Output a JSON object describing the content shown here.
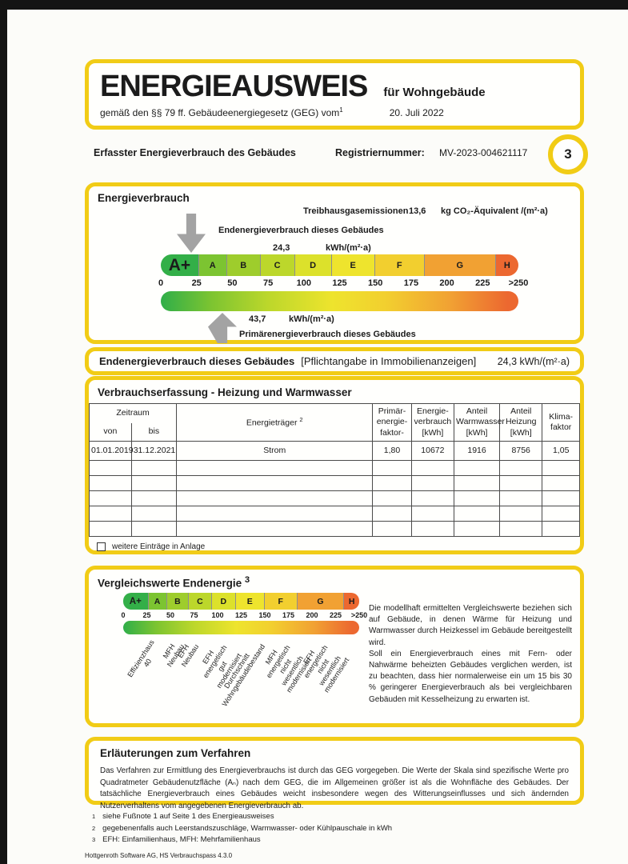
{
  "header": {
    "title": "ENERGIEAUSWEIS",
    "subtitle": "für Wohngebäude",
    "law_text": "gemäß den §§ 79 ff. Gebäudeenergiegesetz (GEG) vom",
    "law_sup": "1",
    "law_date": "20. Juli 2022"
  },
  "meta": {
    "section_label": "Erfasster Energieverbrauch des Gebäudes",
    "registry_label": "Registriernummer:",
    "registry_value": "MV-2023-004621117",
    "page_number": "3"
  },
  "energy": {
    "title": "Energieverbrauch",
    "ghg_label": "Treibhausgasemissionen",
    "ghg_value": "13,6",
    "ghg_unit": "kg CO₂-Äquivalent /(m²·a)",
    "end_label": "Endenergieverbrauch dieses Gebäudes",
    "end_value": "24,3",
    "end_unit": "kWh/(m²·a)",
    "primary_value": "43,7",
    "primary_unit": "kWh/(m²·a)",
    "primary_label": "Primärenergieverbrauch dieses Gebäudes",
    "scale": {
      "segments": [
        {
          "label": "A+",
          "color": "#33AF48",
          "width": 10.7
        },
        {
          "label": "A",
          "color": "#7CC431",
          "width": 7.8
        },
        {
          "label": "B",
          "color": "#9ECD2C",
          "width": 9.4
        },
        {
          "label": "C",
          "color": "#BCD72B",
          "width": 9.6
        },
        {
          "label": "D",
          "color": "#DCE12B",
          "width": 10.3
        },
        {
          "label": "E",
          "color": "#EEE42D",
          "width": 12.1
        },
        {
          "label": "F",
          "color": "#F2CF2F",
          "width": 13.9
        },
        {
          "label": "G",
          "color": "#F1A133",
          "width": 19.9
        },
        {
          "label": "H",
          "color": "#EC6830",
          "width": 6.3
        }
      ],
      "ticks": [
        "0",
        "25",
        "50",
        "75",
        "100",
        "125",
        "150",
        "175",
        "200",
        "225",
        ">250"
      ]
    }
  },
  "endenergy_box": {
    "label": "Endenergieverbrauch dieses Gebäudes",
    "note": "[Pflichtangabe in Immobilienanzeigen]",
    "value": "24,3 kWh/(m²·a)"
  },
  "consumption": {
    "title": "Verbrauchserfassung - Heizung und Warmwasser",
    "headers": {
      "zeitraum": "Zeitraum",
      "von": "von",
      "bis": "bis",
      "carrier": "Energieträger",
      "carrier_sup": "2",
      "pef": "Primär-\nenergie-\nfaktor-",
      "consumption": "Energie-\nverbrauch\n[kWh]",
      "hot_water": "Anteil\nWarmwasser\n[kWh]",
      "heating": "Anteil\nHeizung\n[kWh]",
      "climate": "Klima-\nfaktor"
    },
    "rows": [
      [
        "01.01.2019",
        "31.12.2021",
        "Strom",
        "1,80",
        "10672",
        "1916",
        "8756",
        "1,05"
      ],
      [
        "",
        "",
        "",
        "",
        "",
        "",
        "",
        ""
      ],
      [
        "",
        "",
        "",
        "",
        "",
        "",
        "",
        ""
      ],
      [
        "",
        "",
        "",
        "",
        "",
        "",
        "",
        ""
      ],
      [
        "",
        "",
        "",
        "",
        "",
        "",
        "",
        ""
      ],
      [
        "",
        "",
        "",
        "",
        "",
        "",
        "",
        ""
      ]
    ],
    "checkbox_label": "weitere Einträge in Anlage"
  },
  "comparison": {
    "title": "Vergleichswerte Endenergie",
    "title_sup": "3",
    "scale": {
      "segments": [
        {
          "label": "A+",
          "color": "#33AF48",
          "width": 10.7
        },
        {
          "label": "A",
          "color": "#7CC431",
          "width": 7.8
        },
        {
          "label": "B",
          "color": "#9ECD2C",
          "width": 9.4
        },
        {
          "label": "C",
          "color": "#BCD72B",
          "width": 9.6
        },
        {
          "label": "D",
          "color": "#DCE12B",
          "width": 10.3
        },
        {
          "label": "E",
          "color": "#EEE42D",
          "width": 12.1
        },
        {
          "label": "F",
          "color": "#F2CF2F",
          "width": 13.9
        },
        {
          "label": "G",
          "color": "#F1A133",
          "width": 19.9
        },
        {
          "label": "H",
          "color": "#EC6830",
          "width": 6.3
        }
      ],
      "ticks": [
        "0",
        "25",
        "50",
        "75",
        "100",
        "125",
        "150",
        "175",
        "200",
        "225",
        ">250"
      ]
    },
    "markers": [
      {
        "text": "Effizienzhaus 40",
        "pos": 11
      },
      {
        "text": "MFH Neubau",
        "pos": 21
      },
      {
        "text": "EFH Neubau",
        "pos": 27
      },
      {
        "text": "EFH energetisch\ngut modernisiert",
        "pos": 39
      },
      {
        "text": "Durchschnitt\nWohngebäudebestand",
        "pos": 55
      },
      {
        "text": "MFH energetisch nicht\nwesentlich modernisiert",
        "pos": 66
      },
      {
        "text": "EFH energetisch nicht\nwesentlich modernisiert",
        "pos": 82
      }
    ],
    "paragraphs": [
      "Die modellhaft ermittelten Vergleichswerte beziehen sich auf Gebäude, in denen Wärme für Heizung und Warmwasser durch Heizkessel im Gebäude bereitgestellt wird.",
      "Soll ein Energieverbrauch eines mit Fern- oder Nahwärme beheizten Gebäudes verglichen werden, ist zu beachten, dass hier normalerweise ein um 15 bis 30 % geringerer Energieverbrauch als bei vergleichbaren Gebäuden mit Kesselheizung zu erwarten ist."
    ]
  },
  "explanations": {
    "title": "Erläuterungen zum Verfahren",
    "text": "Das Verfahren zur Ermittlung des Energieverbrauchs ist durch das GEG vorgegeben. Die Werte der Skala sind spezifische Werte pro Quadratmeter Gebäudenutzfläche (Aₙ) nach dem GEG, die im Allgemeinen größer ist als die Wohnfläche des Gebäudes. Der tatsächliche Energieverbrauch eines Gebäudes weicht insbesondere wegen des Witterungseinflusses und sich ändernden Nutzerverhaltens vom angegebenen Energieverbrauch ab."
  },
  "footnotes": {
    "items": [
      {
        "marker": "1",
        "text": "siehe Fußnote 1 auf Seite 1 des Energieausweises"
      },
      {
        "marker": "2",
        "text": "gegebenenfalls auch Leerstandszuschläge, Warmwasser- oder Kühlpauschale in kWh"
      },
      {
        "marker": "3",
        "text": "EFH: Einfamilienhaus, MFH: Mehrfamilienhaus"
      }
    ],
    "vendor": "Hottgenroth Software AG, HS Verbrauchspass 4.3.0"
  }
}
